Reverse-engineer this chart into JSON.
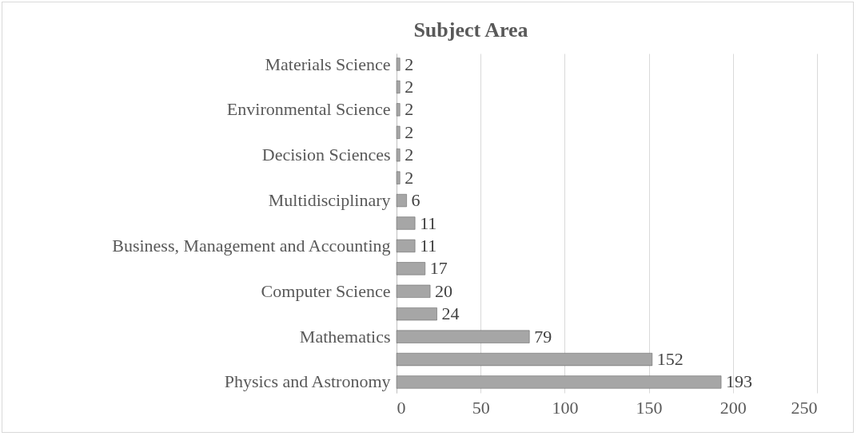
{
  "chart_data": {
    "type": "bar",
    "orientation": "horizontal",
    "title": "Subject Area",
    "categories": [
      "Materials Science",
      null,
      "Environmental Science",
      null,
      "Decision Sciences",
      null,
      "Multidisciplinary",
      null,
      "Business, Management and Accounting",
      null,
      "Computer Science",
      null,
      "Mathematics",
      null,
      "Physics and Astronomy"
    ],
    "values": [
      2,
      2,
      2,
      2,
      2,
      2,
      6,
      11,
      11,
      17,
      20,
      24,
      79,
      152,
      193
    ],
    "color": "#a6a6a6",
    "xlim": [
      0,
      250
    ],
    "xticks": [
      0,
      50,
      100,
      150,
      200,
      250
    ],
    "grid": "x",
    "data_labels": true
  }
}
